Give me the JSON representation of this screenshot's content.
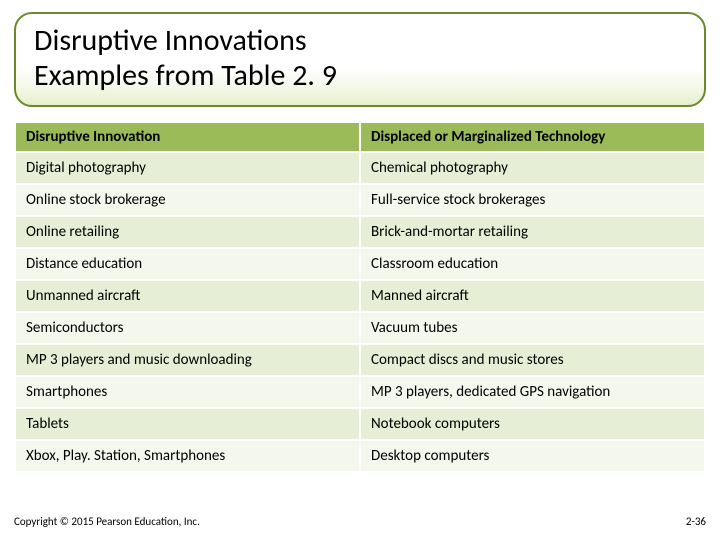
{
  "title_line1": "Disruptive Innovations",
  "title_line2": "Examples from Table 2. 9",
  "table": {
    "header_left": "Disruptive Innovation",
    "header_right": "Displaced or Marginalized Technology",
    "rows": [
      {
        "left": "Digital photography",
        "right": "Chemical photography"
      },
      {
        "left": "Online stock brokerage",
        "right": "Full-service stock brokerages"
      },
      {
        "left": "Online retailing",
        "right": "Brick-and-mortar retailing"
      },
      {
        "left": "Distance education",
        "right": "Classroom education"
      },
      {
        "left": "Unmanned aircraft",
        "right": "Manned aircraft"
      },
      {
        "left": "Semiconductors",
        "right": "Vacuum tubes"
      },
      {
        "left": "MP 3 players and music downloading",
        "right": "Compact discs and music stores"
      },
      {
        "left": "Smartphones",
        "right": "MP 3 players, dedicated GPS navigation"
      },
      {
        "left": "Tablets",
        "right": "Notebook computers"
      },
      {
        "left": "Xbox, Play. Station,  Smartphones",
        "right": "Desktop computers"
      }
    ]
  },
  "footer_left": "Copyright © 2015 Pearson Education, Inc.",
  "footer_right": "2-36",
  "colors": {
    "header_bg": "#9bbb59",
    "row_odd_bg": "#e6eed5",
    "row_even_bg": "#f4f7ec",
    "title_border": "#6a8a2a"
  }
}
